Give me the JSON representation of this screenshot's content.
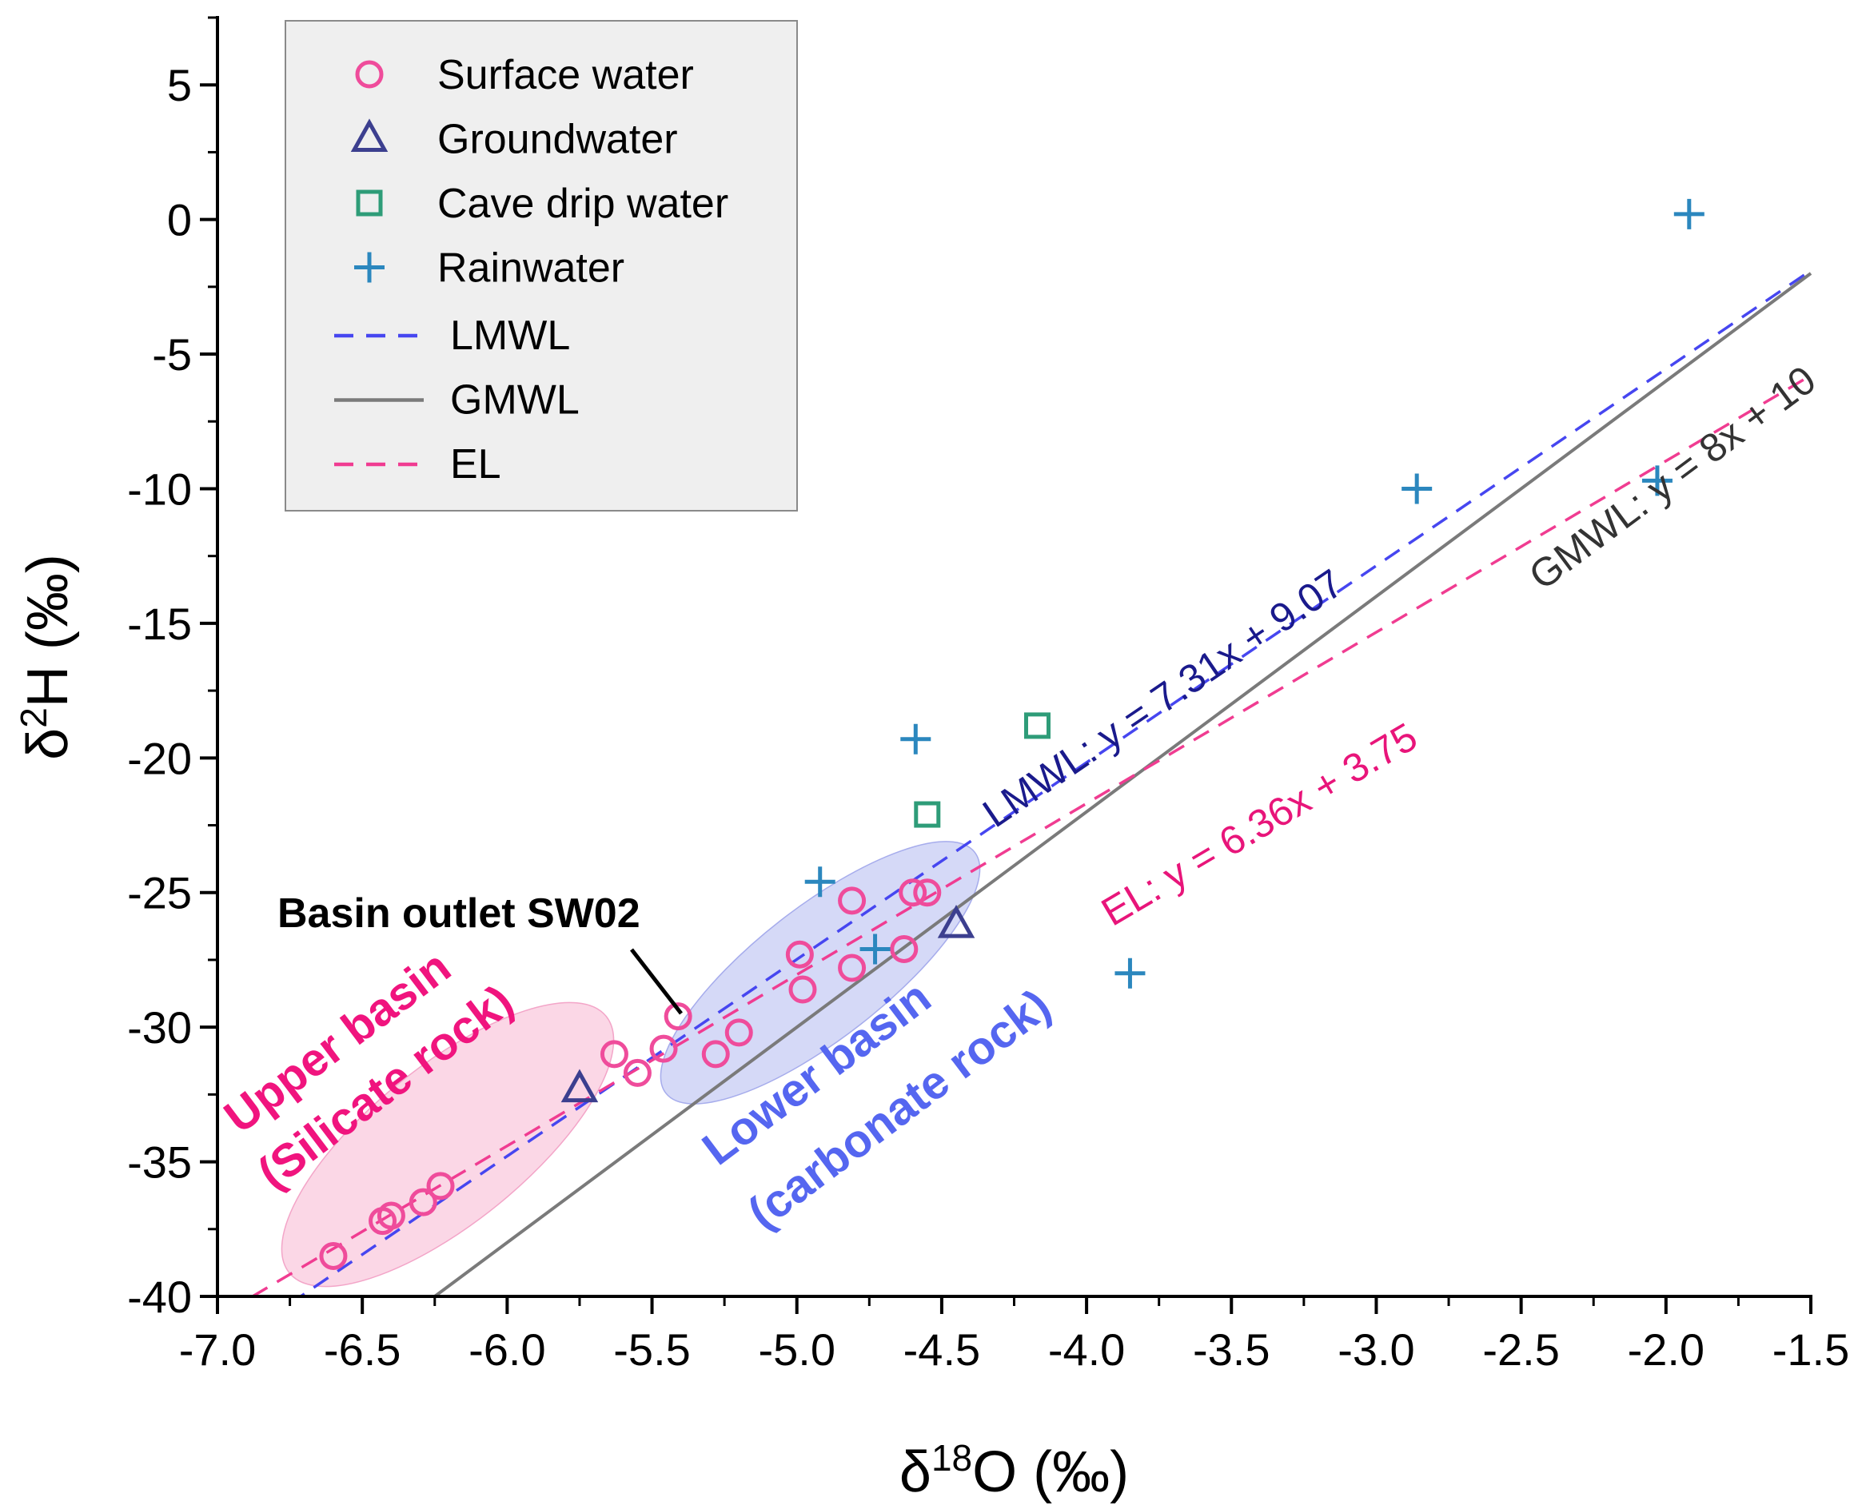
{
  "chart_data": {
    "type": "scatter",
    "xlabel": {
      "prefix": "δ",
      "sup": "18",
      "main": "O (‰)"
    },
    "ylabel": {
      "prefix": "δ",
      "sup": "2",
      "main": "H (‰)"
    },
    "xlim": [
      -7.0,
      -1.5
    ],
    "ylim": [
      -40,
      7.5
    ],
    "xticks": [
      -7.0,
      -6.5,
      -6.0,
      -5.5,
      -5.0,
      -4.5,
      -4.0,
      -3.5,
      -3.0,
      -2.5,
      -2.0,
      -1.5
    ],
    "xtick_labels": [
      "-7.0",
      "-6.5",
      "-6.0",
      "-5.5",
      "-5.0",
      "-4.5",
      "-4.0",
      "-3.5",
      "-3.0",
      "-2.5",
      "-2.0",
      "-1.5"
    ],
    "yticks": [
      5,
      0,
      -5,
      -10,
      -15,
      -20,
      -25,
      -30,
      -35,
      -40
    ],
    "ytick_labels": [
      "5",
      "0",
      "-5",
      "-10",
      "-15",
      "-20",
      "-25",
      "-30",
      "-35",
      "-40"
    ],
    "grid": false,
    "legend_position": "top-left",
    "series": [
      {
        "name": "Surface water",
        "marker": "circle",
        "color": "#ef4c9b",
        "points": [
          [
            -6.6,
            -38.5
          ],
          [
            -6.43,
            -37.2
          ],
          [
            -6.4,
            -37.0
          ],
          [
            -6.29,
            -36.5
          ],
          [
            -6.23,
            -35.9
          ],
          [
            -5.63,
            -31.0
          ],
          [
            -5.55,
            -31.7
          ],
          [
            -5.46,
            -30.8
          ],
          [
            -5.41,
            -29.6
          ],
          [
            -5.28,
            -31.0
          ],
          [
            -5.2,
            -30.2
          ],
          [
            -4.99,
            -27.3
          ],
          [
            -4.98,
            -28.6
          ],
          [
            -4.81,
            -25.3
          ],
          [
            -4.81,
            -27.8
          ],
          [
            -4.63,
            -27.1
          ],
          [
            -4.6,
            -25.0
          ],
          [
            -4.55,
            -25.0
          ]
        ]
      },
      {
        "name": "Groundwater",
        "marker": "triangle",
        "color": "#3c3f8f",
        "points": [
          [
            -5.75,
            -32.3
          ],
          [
            -4.45,
            -26.2
          ]
        ]
      },
      {
        "name": "Cave drip water",
        "marker": "square",
        "color": "#2e9c78",
        "points": [
          [
            -4.55,
            -22.1
          ],
          [
            -4.17,
            -18.8
          ]
        ]
      },
      {
        "name": "Rainwater",
        "marker": "plus",
        "color": "#2b87be",
        "points": [
          [
            -4.92,
            -24.6
          ],
          [
            -4.59,
            -19.3
          ],
          [
            -4.73,
            -27.1
          ],
          [
            -3.85,
            -28.0
          ],
          [
            -2.86,
            -10.0
          ],
          [
            -2.03,
            -9.7
          ],
          [
            -1.92,
            0.2
          ]
        ]
      }
    ],
    "lines": [
      {
        "name": "LMWL",
        "style": "dashed",
        "color": "#4646f0",
        "slope": 7.31,
        "intercept": 9.07,
        "x_range": [
          -6.75,
          -1.5
        ],
        "label": "LMWL: y = 7.31x + 9.07",
        "label_color": "#1a1a8c"
      },
      {
        "name": "GMWL",
        "style": "solid",
        "color": "#7a7a7a",
        "slope": 8,
        "intercept": 10,
        "x_range": [
          -6.25,
          -1.5
        ],
        "label": "GMWL: y = 8x + 10",
        "label_color": "#333333"
      },
      {
        "name": "EL",
        "style": "dashed",
        "color": "#f03c91",
        "slope": 6.36,
        "intercept": 3.75,
        "x_range": [
          -6.88,
          -1.5
        ],
        "label": "EL: y = 6.36x + 3.75",
        "label_color": "#e8157a"
      }
    ],
    "legend_items": [
      {
        "label": "Surface water",
        "key": "circle",
        "color": "#ef4c9b"
      },
      {
        "label": "Groundwater",
        "key": "triangle",
        "color": "#3c3f8f"
      },
      {
        "label": "Cave drip water",
        "key": "square",
        "color": "#2e9c78"
      },
      {
        "label": "Rainwater",
        "key": "plus",
        "color": "#2b87be"
      },
      {
        "label": "LMWL",
        "key": "dashed",
        "color": "#4646f0"
      },
      {
        "label": "GMWL",
        "key": "solid",
        "color": "#7a7a7a"
      },
      {
        "label": "EL",
        "key": "dashed",
        "color": "#f03c91"
      }
    ],
    "annotations": {
      "outlet": "Basin outlet SW02",
      "upper_basin": [
        "Upper basin",
        "(Silicate rock)"
      ],
      "lower_basin": [
        "Lower basin",
        "(carbonate rock)"
      ]
    },
    "colors": {
      "upper_fill": "#f8bcd6",
      "lower_fill": "#b9bff2",
      "upper_text": "#f0147e",
      "lower_text": "#5566f0",
      "legend_bg": "#efefef"
    }
  }
}
